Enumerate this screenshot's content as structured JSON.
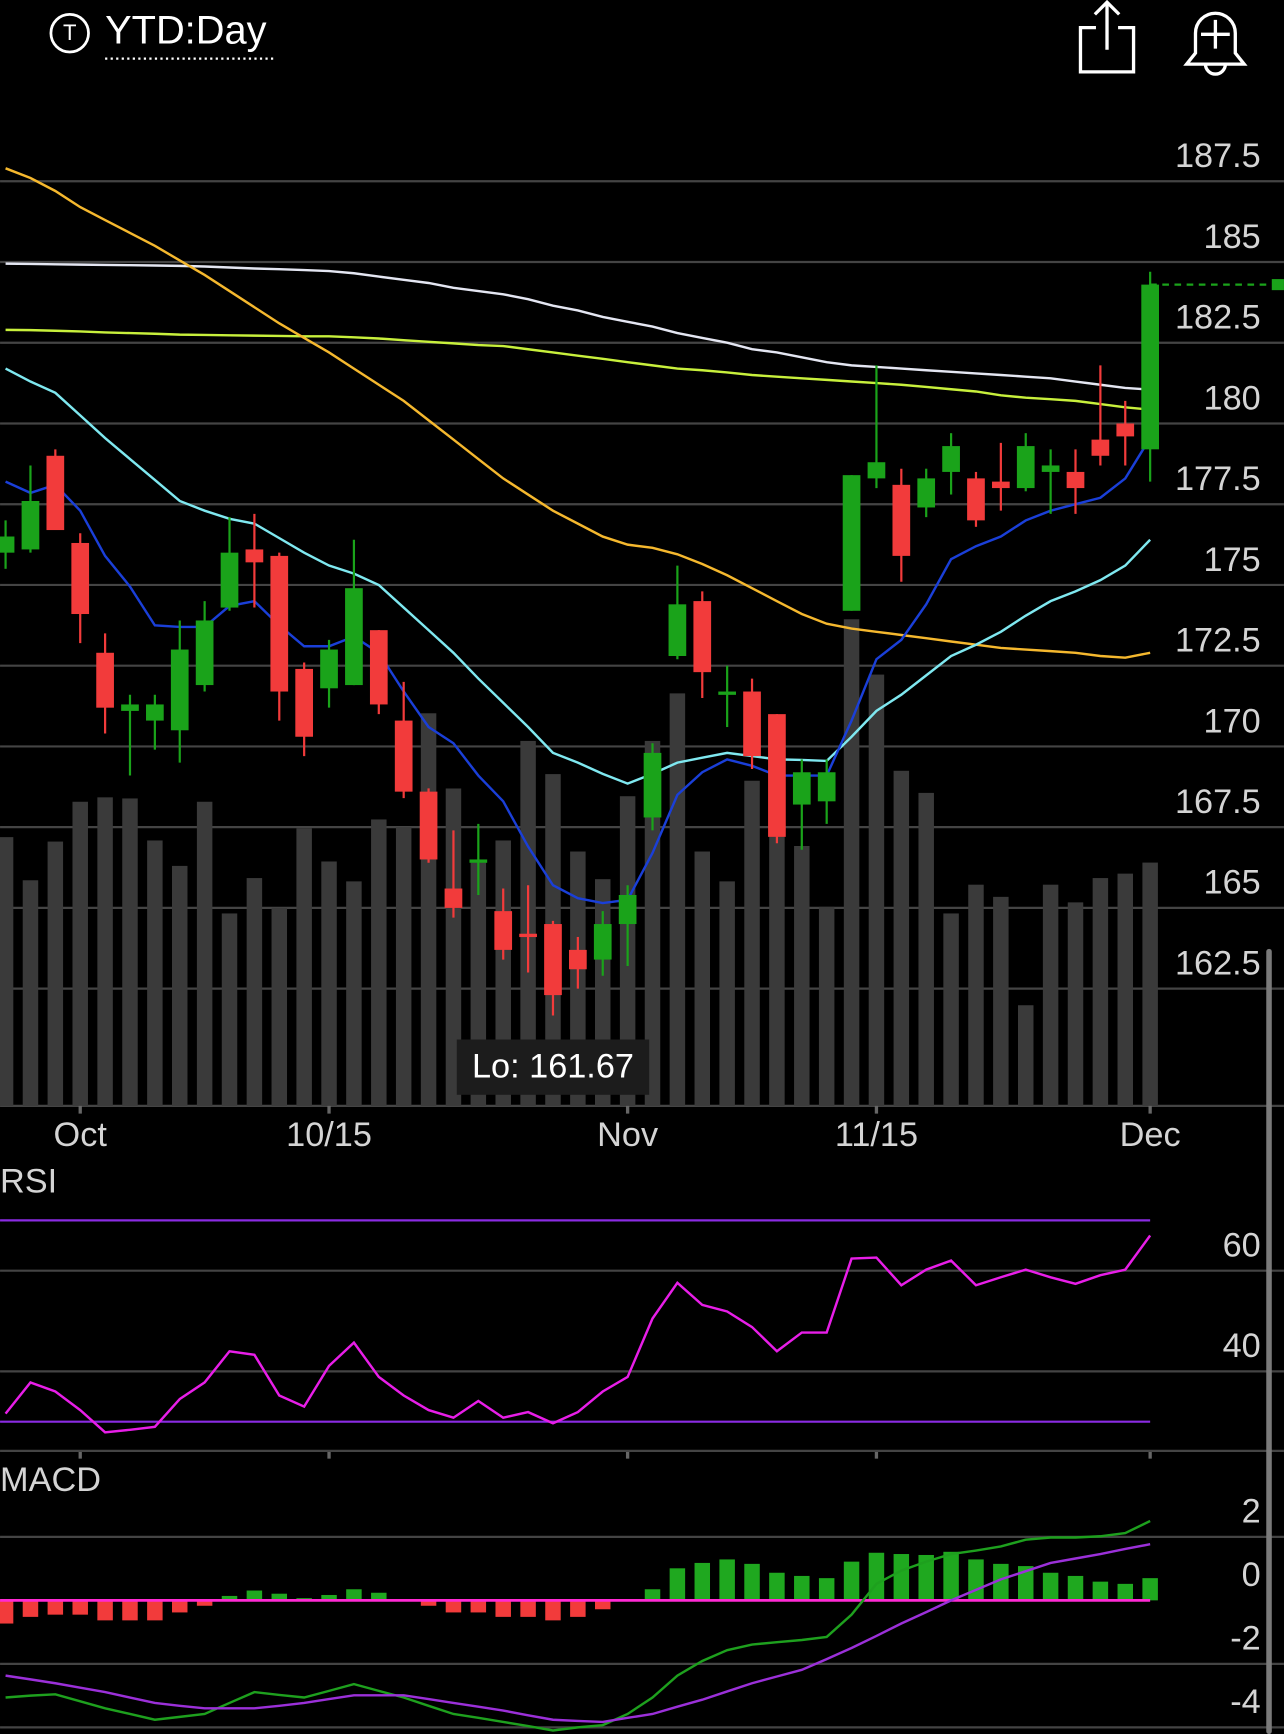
{
  "header": {
    "icon_letter": "T",
    "title": "YTD:Day"
  },
  "chart_data": [
    {
      "type": "candlestick",
      "categories": [
        null,
        null,
        null,
        "Oct",
        null,
        null,
        null,
        null,
        null,
        null,
        null,
        null,
        null,
        "10/15",
        null,
        null,
        null,
        null,
        null,
        null,
        null,
        null,
        null,
        null,
        null,
        "Nov",
        null,
        null,
        null,
        null,
        null,
        null,
        null,
        null,
        null,
        "11/15",
        null,
        null,
        null,
        null,
        null,
        null,
        null,
        null,
        null,
        null,
        "Dec"
      ],
      "open": [
        176.0,
        176.1,
        179.0,
        176.3,
        172.9,
        171.1,
        170.8,
        170.5,
        171.9,
        174.3,
        176.1,
        175.9,
        172.4,
        171.8,
        171.9,
        173.6,
        170.8,
        168.6,
        165.6,
        166.4,
        164.9,
        164.2,
        164.5,
        163.7,
        163.4,
        164.5,
        167.8,
        172.8,
        174.5,
        171.6,
        171.7,
        171.0,
        168.2,
        168.3,
        174.2,
        178.3,
        178.1,
        177.4,
        178.5,
        178.3,
        178.2,
        178.0,
        178.5,
        178.5,
        179.5,
        180.0,
        179.2
      ],
      "high": [
        177.0,
        178.7,
        179.2,
        176.6,
        173.5,
        171.6,
        171.6,
        173.9,
        174.5,
        177.1,
        177.2,
        176.0,
        172.6,
        173.3,
        176.4,
        173.6,
        172.0,
        168.7,
        167.4,
        167.6,
        165.6,
        165.7,
        164.6,
        164.1,
        164.9,
        165.7,
        170.1,
        175.6,
        174.8,
        172.5,
        172.1,
        171.0,
        169.6,
        169.6,
        178.4,
        181.8,
        178.6,
        178.6,
        179.7,
        178.5,
        179.4,
        179.7,
        179.2,
        179.2,
        181.8,
        180.7,
        184.7
      ],
      "low": [
        175.5,
        176.0,
        176.7,
        173.2,
        170.4,
        169.1,
        169.9,
        169.5,
        171.7,
        174.2,
        174.3,
        170.8,
        169.7,
        171.2,
        171.9,
        171.0,
        168.4,
        166.4,
        164.7,
        165.4,
        163.4,
        163.0,
        161.67,
        162.5,
        162.9,
        163.2,
        167.4,
        172.7,
        171.5,
        170.6,
        169.3,
        167.0,
        166.8,
        167.6,
        174.2,
        178.0,
        175.1,
        177.1,
        177.8,
        176.8,
        177.3,
        177.9,
        177.2,
        177.2,
        178.7,
        178.7,
        178.2
      ],
      "close": [
        176.5,
        177.6,
        176.7,
        174.1,
        171.2,
        171.3,
        171.3,
        173.0,
        173.9,
        176.0,
        175.7,
        171.7,
        170.3,
        173.0,
        174.9,
        171.3,
        168.6,
        166.5,
        165.0,
        166.5,
        163.7,
        164.1,
        162.3,
        163.1,
        164.5,
        165.4,
        169.8,
        174.4,
        172.3,
        171.7,
        169.7,
        167.2,
        169.2,
        169.2,
        178.4,
        178.8,
        175.9,
        178.3,
        179.3,
        177.0,
        178.0,
        179.3,
        178.7,
        178.0,
        179.0,
        179.6,
        184.3
      ],
      "volume": [
        243,
        204,
        239,
        275,
        279,
        278,
        240,
        217,
        275,
        174,
        206,
        179,
        251,
        221,
        203,
        259,
        252,
        355,
        287,
        220,
        240,
        330,
        300,
        230,
        205,
        280,
        330,
        373,
        230,
        203,
        294,
        318,
        235,
        180,
        440,
        390,
        303,
        283,
        174,
        200,
        189,
        91,
        200,
        184,
        206,
        210,
        220
      ],
      "up_color": "#1aa31a",
      "down_color": "#f23b3b",
      "volume_color": "#3a3a3a",
      "moving_averages": [
        {
          "color": "#e4e6f2",
          "values": [
            184.95,
            184.94,
            184.93,
            184.92,
            184.91,
            184.9,
            184.89,
            184.88,
            184.86,
            184.83,
            184.8,
            184.78,
            184.75,
            184.72,
            184.65,
            184.55,
            184.45,
            184.35,
            184.2,
            184.1,
            184.0,
            183.85,
            183.65,
            183.5,
            183.3,
            183.15,
            183.0,
            182.8,
            182.65,
            182.5,
            182.3,
            182.2,
            182.05,
            181.9,
            181.8,
            181.75,
            181.7,
            181.65,
            181.6,
            181.55,
            181.5,
            181.45,
            181.4,
            181.3,
            181.2,
            181.1,
            181.05
          ]
        },
        {
          "color": "#c8f03c",
          "values": [
            182.9,
            182.89,
            182.87,
            182.85,
            182.82,
            182.8,
            182.78,
            182.75,
            182.74,
            182.73,
            182.72,
            182.71,
            182.7,
            182.7,
            182.67,
            182.63,
            182.58,
            182.53,
            182.48,
            182.43,
            182.4,
            182.3,
            182.2,
            182.1,
            182.0,
            181.9,
            181.8,
            181.7,
            181.65,
            181.58,
            181.5,
            181.45,
            181.4,
            181.35,
            181.3,
            181.25,
            181.2,
            181.13,
            181.06,
            180.99,
            180.87,
            180.8,
            180.75,
            180.7,
            180.6,
            180.5,
            180.43
          ]
        },
        {
          "color": "#f5b82e",
          "values": [
            187.9,
            187.6,
            187.2,
            186.7,
            186.3,
            185.9,
            185.5,
            185.05,
            184.6,
            184.1,
            183.6,
            183.1,
            182.65,
            182.2,
            181.7,
            181.2,
            180.7,
            180.1,
            179.5,
            178.9,
            178.3,
            177.8,
            177.3,
            176.9,
            176.5,
            176.25,
            176.15,
            175.95,
            175.65,
            175.3,
            174.9,
            174.5,
            174.1,
            173.8,
            173.65,
            173.55,
            173.45,
            173.35,
            173.25,
            173.15,
            173.05,
            173.0,
            172.95,
            172.9,
            172.8,
            172.75,
            172.9
          ]
        },
        {
          "color": "#7fe8f0",
          "values": [
            181.7,
            181.3,
            180.95,
            180.25,
            179.55,
            178.9,
            178.25,
            177.6,
            177.3,
            177.05,
            176.9,
            176.45,
            176.0,
            175.6,
            175.35,
            175.0,
            174.3,
            173.6,
            172.9,
            172.1,
            171.35,
            170.6,
            169.8,
            169.5,
            169.15,
            168.85,
            169.15,
            169.5,
            169.65,
            169.8,
            169.7,
            169.6,
            169.58,
            169.55,
            170.3,
            171.1,
            171.6,
            172.2,
            172.8,
            173.15,
            173.55,
            174.05,
            174.5,
            174.8,
            175.15,
            175.6,
            176.4
          ]
        },
        {
          "color": "#1a3fd8",
          "values": [
            178.2,
            177.85,
            178.1,
            177.3,
            175.9,
            174.95,
            173.75,
            173.7,
            173.7,
            174.35,
            174.5,
            173.75,
            173.1,
            173.1,
            173.4,
            172.9,
            171.7,
            170.6,
            170.1,
            169.1,
            168.3,
            166.9,
            165.7,
            165.3,
            165.15,
            165.25,
            166.7,
            168.5,
            169.2,
            169.6,
            169.4,
            169.1,
            169.1,
            169.1,
            170.8,
            172.7,
            173.3,
            174.4,
            175.8,
            176.2,
            176.5,
            177.0,
            177.3,
            177.5,
            177.7,
            178.3,
            179.55
          ]
        }
      ],
      "annotation": "Lo: 161.67",
      "ylim": [
        158.87,
        189.86
      ],
      "yticks": [
        162.5,
        165,
        167.5,
        170,
        172.5,
        175,
        177.5,
        180,
        182.5,
        185,
        187.5
      ],
      "grid": true
    },
    {
      "type": "line",
      "title": "RSI",
      "color": "#e81ee8",
      "values": [
        31.6,
        37.8,
        36.0,
        32.3,
        27.9,
        28.4,
        29.0,
        34.5,
        37.8,
        44.0,
        43.3,
        35.2,
        33.0,
        41.1,
        45.7,
        38.9,
        35.2,
        32.3,
        30.8,
        34.1,
        30.8,
        31.9,
        29.7,
        31.9,
        36.0,
        38.9,
        50.5,
        57.6,
        53.2,
        51.9,
        48.8,
        44.0,
        47.7,
        47.7,
        62.4,
        62.6,
        57.1,
        60.2,
        62.0,
        57.1,
        58.7,
        60.2,
        58.7,
        57.4,
        59.1,
        60.2,
        67.0
      ],
      "bands": [
        30,
        70
      ],
      "band_color": "#8a2be2",
      "ylim": [
        24.2,
        80
      ],
      "yticks": [
        40,
        60
      ],
      "grid": true
    },
    {
      "type": "macd",
      "title": "MACD",
      "series": [
        {
          "color": "#1ea01e",
          "values": [
            -3.06,
            -3.0,
            -2.96,
            -3.18,
            -3.4,
            -3.58,
            -3.76,
            -3.67,
            -3.58,
            -3.23,
            -2.89,
            -2.98,
            -3.06,
            -2.85,
            -2.64,
            -2.85,
            -3.06,
            -3.32,
            -3.58,
            -3.7,
            -3.83,
            -3.96,
            -4.1,
            -4.0,
            -3.93,
            -3.58,
            -3.06,
            -2.37,
            -1.91,
            -1.57,
            -1.39,
            -1.32,
            -1.25,
            -1.15,
            -0.45,
            0.52,
            0.94,
            1.22,
            1.46,
            1.57,
            1.7,
            1.91,
            1.98,
            1.98,
            2.02,
            2.12,
            2.5
          ]
        },
        {
          "color": "#9b30d9",
          "values": [
            -2.37,
            -2.49,
            -2.61,
            -2.75,
            -2.89,
            -3.06,
            -3.23,
            -3.32,
            -3.4,
            -3.4,
            -3.4,
            -3.32,
            -3.23,
            -3.11,
            -2.99,
            -2.99,
            -2.99,
            -3.11,
            -3.23,
            -3.35,
            -3.47,
            -3.62,
            -3.76,
            -3.8,
            -3.83,
            -3.7,
            -3.58,
            -3.35,
            -3.13,
            -2.87,
            -2.61,
            -2.4,
            -2.19,
            -1.85,
            -1.5,
            -1.12,
            -0.73,
            -0.37,
            0,
            0.33,
            0.66,
            0.92,
            1.18,
            1.32,
            1.46,
            1.62,
            1.77
          ]
        }
      ],
      "histogram": [
        -0.73,
        -0.52,
        -0.45,
        -0.45,
        -0.63,
        -0.63,
        -0.63,
        -0.38,
        -0.17,
        0.14,
        0.31,
        0.21,
        0.07,
        0.17,
        0.35,
        0.24,
        -0.03,
        -0.17,
        -0.38,
        -0.38,
        -0.52,
        -0.52,
        -0.63,
        -0.52,
        -0.28,
        0.02,
        0.35,
        1.01,
        1.18,
        1.29,
        1.15,
        0.87,
        0.77,
        0.7,
        1.22,
        1.5,
        1.46,
        1.43,
        1.53,
        1.29,
        1.15,
        1.08,
        0.87,
        0.77,
        0.59,
        0.52,
        0.7
      ],
      "up_color": "#1fa81f",
      "down_color": "#f23b3b",
      "zero_line_color": "#ff2ad4",
      "ylim": [
        -4.21,
        4.5
      ],
      "yticks": [
        -4,
        -2,
        0,
        2
      ],
      "grid": true
    }
  ]
}
